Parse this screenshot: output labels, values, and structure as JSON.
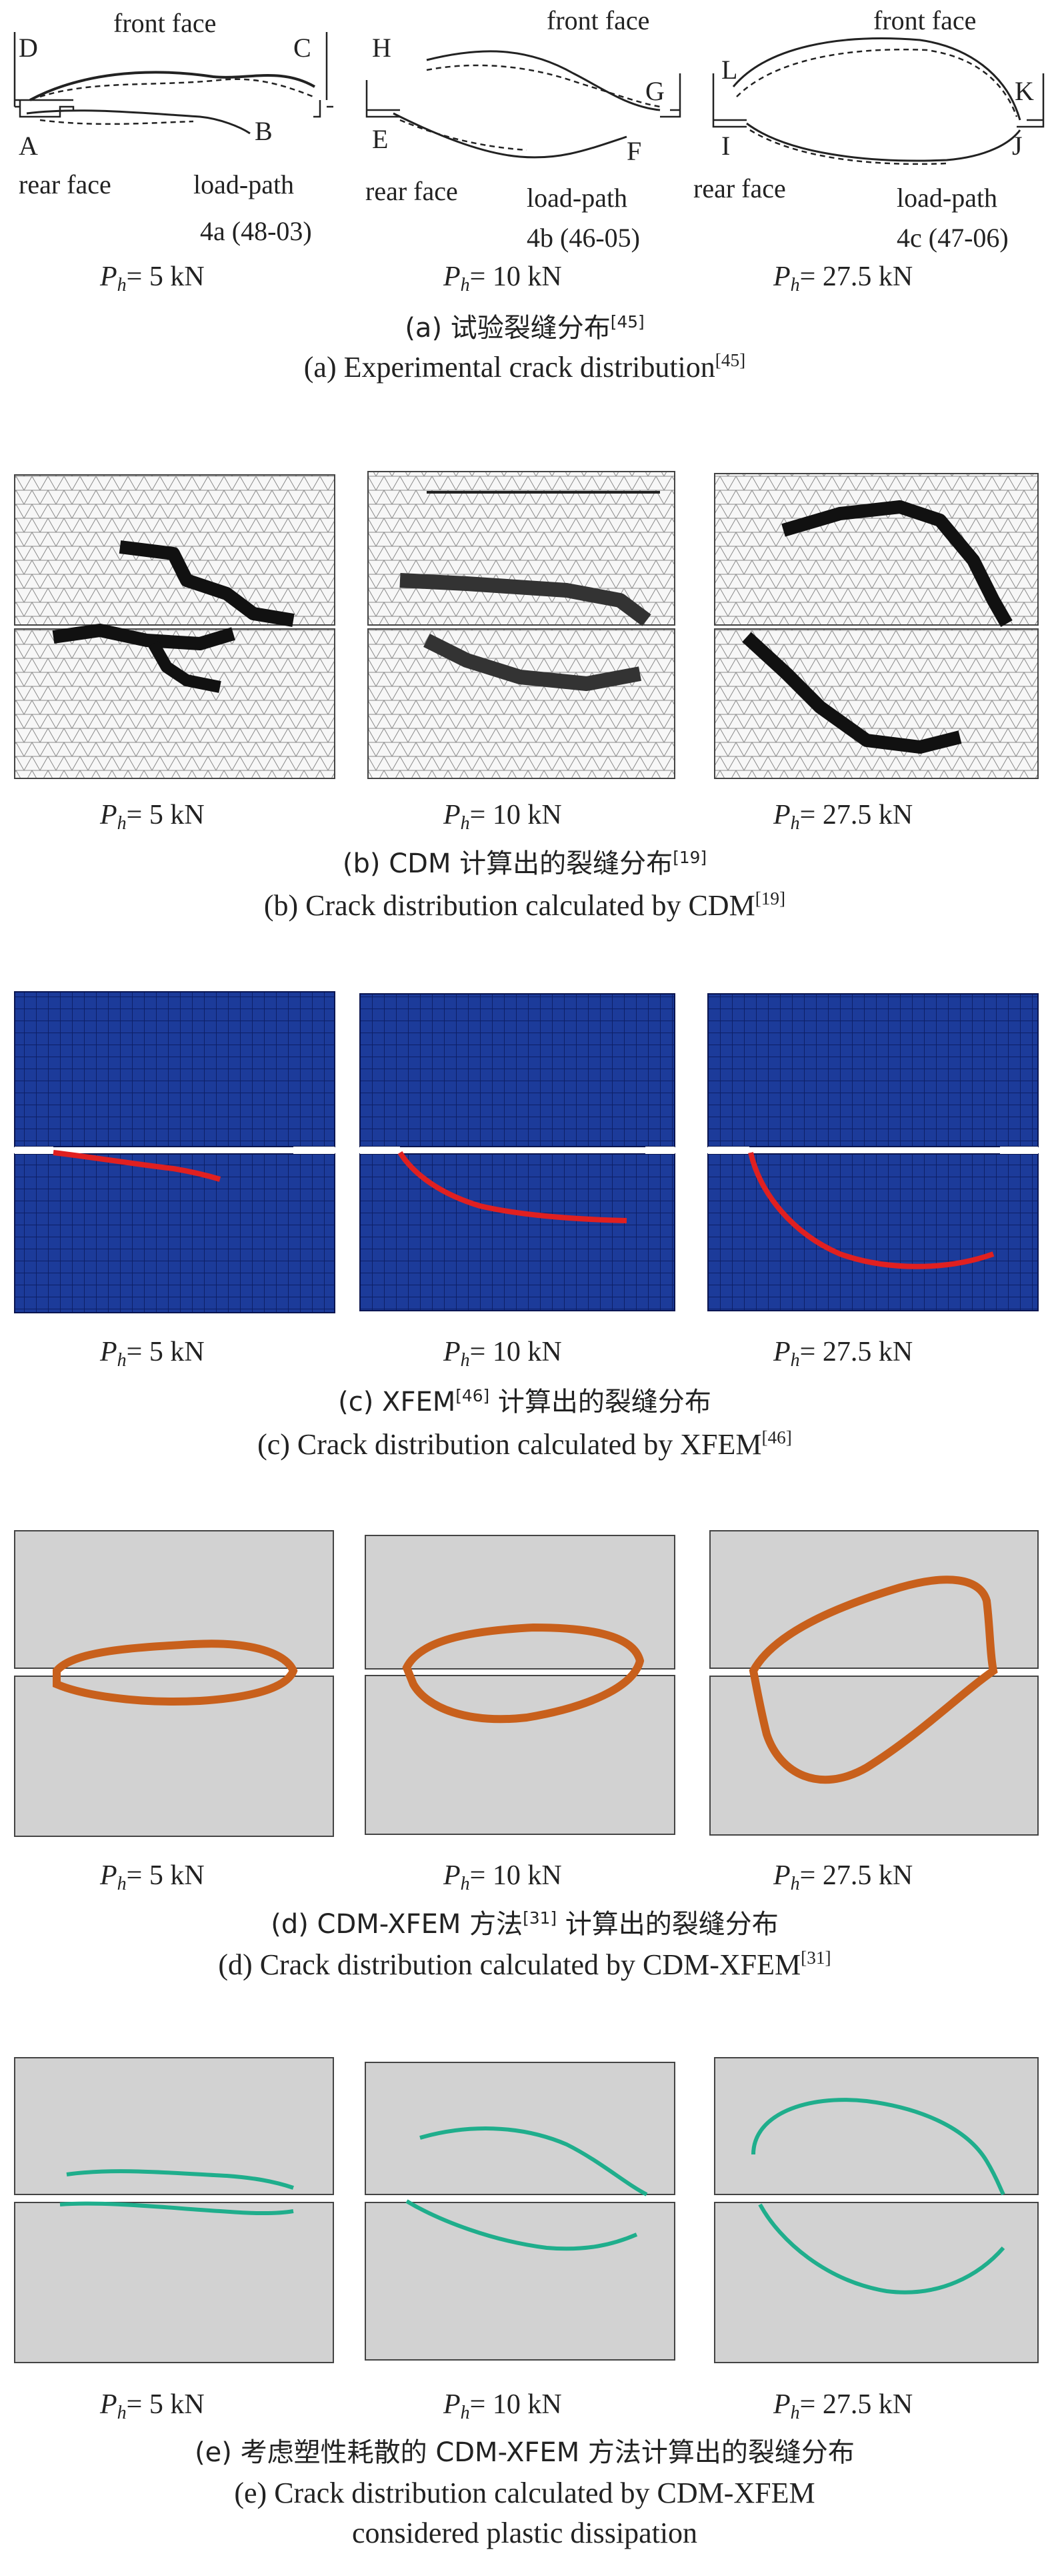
{
  "figure": {
    "load_label_var": "P",
    "load_label_sub": "h",
    "load_values": [
      "= 5 kN",
      "= 10 kN",
      "= 27.5 kN"
    ],
    "panel_a": {
      "front_face": "front face",
      "rear_face": "rear face",
      "load_path": "load-path",
      "specimens": [
        "4a (48-03)",
        "4b (46-05)",
        "4c (47-06)"
      ],
      "points": {
        "p1": [
          "D",
          "C",
          "A",
          "B"
        ],
        "p2": [
          "H",
          "G",
          "E",
          "F"
        ],
        "p3": [
          "L",
          "K",
          "I",
          "J"
        ]
      },
      "caption_cn": "(a) 试验裂缝分布",
      "caption_cn_ref": "[45]",
      "caption_en": "(a) Experimental crack distribution",
      "caption_en_ref": "[45]"
    },
    "panel_b": {
      "caption_cn_pre": "(b) CDM 计算出的裂缝分布",
      "caption_cn_ref": "[19]",
      "caption_en": "(b) Crack distribution calculated by CDM",
      "caption_en_ref": "[19]"
    },
    "panel_c": {
      "caption_cn_pre": "(c) XFEM",
      "caption_cn_ref": "[46]",
      "caption_cn_post": " 计算出的裂缝分布",
      "caption_en": "(c) Crack distribution calculated by XFEM",
      "caption_en_ref": "[46]"
    },
    "panel_d": {
      "caption_cn_pre": "(d) CDM-XFEM 方法",
      "caption_cn_ref": "[31]",
      "caption_cn_post": " 计算出的裂缝分布",
      "caption_en": "(d) Crack distribution calculated by CDM-XFEM",
      "caption_en_ref": "[31]"
    },
    "panel_e": {
      "caption_cn": "(e) 考虑塑性耗散的 CDM-XFEM 方法计算出的裂缝分布",
      "caption_en_line1": "(e) Crack distribution calculated by CDM-XFEM",
      "caption_en_line2": "considered plastic dissipation"
    }
  },
  "colors": {
    "mesh_blue": "#1c3b9a",
    "crack_red": "#e02020",
    "crack_orange": "#c8601c",
    "crack_teal": "#1fae8c",
    "panel_gray": "#d2d2d2",
    "crack_black": "#111111"
  }
}
